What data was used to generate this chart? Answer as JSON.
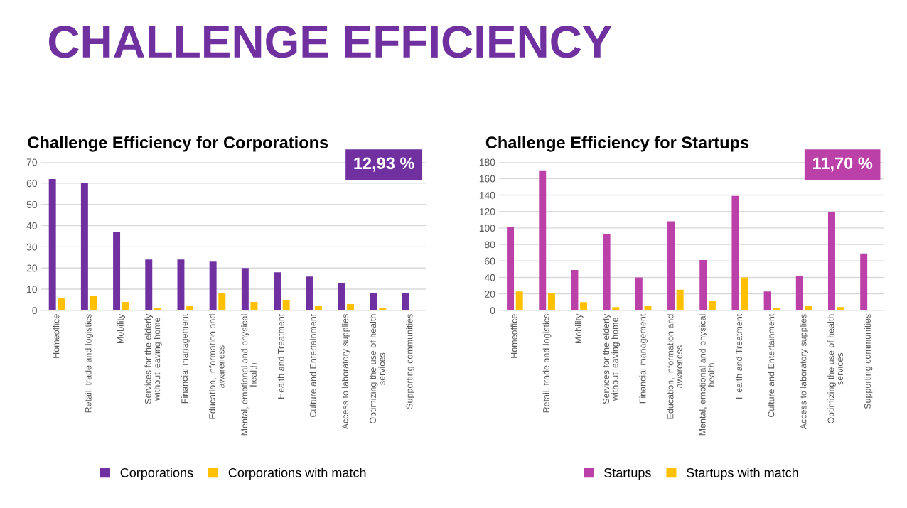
{
  "chart_data": [
    {
      "type": "bar",
      "title": "Challenge Efficiency for Corporations",
      "annotations": [
        "CHALLENGE EFFICIENCY",
        "12,93 %"
      ],
      "categories": [
        "Homeoffice",
        "Retail, trade and logistics",
        "Mobility",
        "Services for the elderly without leaving home",
        "Financial management",
        "Education, information and awareness",
        "Mental, emotional and physical health",
        "Health and Treatment",
        "Culture and Entertainment",
        "Access to laboratory supplies",
        "Optimizing the use of health services",
        "Supporting communities"
      ],
      "series": [
        {
          "name": "Corporations",
          "color": "#7030a0",
          "values": [
            62,
            60,
            37,
            24,
            24,
            23,
            20,
            18,
            16,
            13,
            8,
            8
          ]
        },
        {
          "name": "Corporations with match",
          "color": "#ffc000",
          "values": [
            6,
            7,
            4,
            1,
            2,
            8,
            4,
            5,
            2,
            3,
            1,
            0
          ]
        }
      ],
      "ylim": [
        0,
        70
      ],
      "yticks": [
        0,
        10,
        20,
        30,
        40,
        50,
        60,
        70
      ],
      "grid": "y",
      "legend": "bottom"
    },
    {
      "type": "bar",
      "title": "Challenge Efficiency for Startups",
      "annotations": [
        "11,70 %"
      ],
      "categories": [
        "Homeoffice",
        "Retail, trade and logistics",
        "Mobility",
        "Services for the elderly without leaving home",
        "Financial management",
        "Education, information and awareness",
        "Mental, emotional and physical health",
        "Health and Treatment",
        "Culture and Entertainment",
        "Access to laboratory supplies",
        "Optimizing the use of health services",
        "Supporting communities"
      ],
      "series": [
        {
          "name": "Startups",
          "color": "#bb40a8",
          "values": [
            101,
            170,
            49,
            93,
            40,
            108,
            61,
            139,
            23,
            42,
            119,
            69
          ]
        },
        {
          "name": "Startups with match",
          "color": "#ffc000",
          "values": [
            23,
            21,
            10,
            4,
            5,
            25,
            11,
            40,
            3,
            6,
            4,
            0
          ]
        }
      ],
      "ylim": [
        0,
        180
      ],
      "yticks": [
        0,
        20,
        40,
        60,
        80,
        100,
        120,
        140,
        160,
        180
      ],
      "grid": "y",
      "legend": "bottom"
    }
  ]
}
